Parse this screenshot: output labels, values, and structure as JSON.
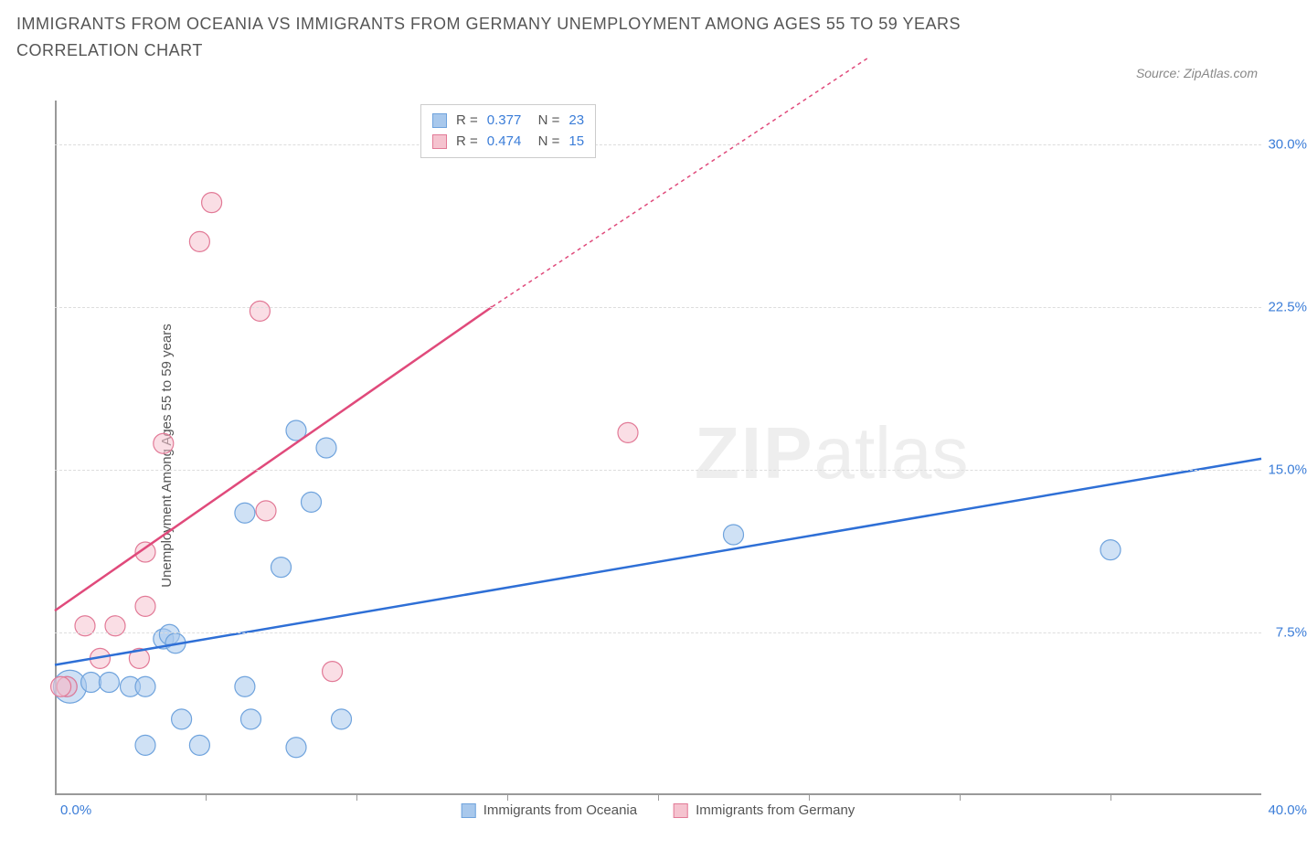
{
  "title": "IMMIGRANTS FROM OCEANIA VS IMMIGRANTS FROM GERMANY UNEMPLOYMENT AMONG AGES 55 TO 59 YEARS CORRELATION CHART",
  "source": "Source: ZipAtlas.com",
  "watermark": {
    "bold": "ZIP",
    "rest": "atlas"
  },
  "chart": {
    "type": "scatter",
    "y_axis_label": "Unemployment Among Ages 55 to 59 years",
    "xlim": [
      0,
      40
    ],
    "ylim": [
      0,
      32
    ],
    "y_ticks": [
      7.5,
      15.0,
      22.5,
      30.0
    ],
    "y_tick_labels": [
      "7.5%",
      "15.0%",
      "22.5%",
      "30.0%"
    ],
    "x_tick_marks": [
      5,
      10,
      15,
      20,
      25,
      30,
      35
    ],
    "x_tick_left": "0.0%",
    "x_tick_right": "40.0%",
    "background_color": "#ffffff",
    "grid_color": "#dddddd",
    "series": [
      {
        "name": "Immigrants from Oceania",
        "fill": "#a8c8ec",
        "stroke": "#6fa3dd",
        "fill_opacity": 0.55,
        "marker_r": 11,
        "line_color": "#2e6fd6",
        "line_width": 2.5,
        "line_dash": "none",
        "R": "0.377",
        "N": "23",
        "trend": {
          "x1": 0,
          "y1": 6.0,
          "x2": 40,
          "y2": 15.5
        },
        "points": [
          {
            "x": 0.5,
            "y": 5.0,
            "r": 18
          },
          {
            "x": 0.4,
            "y": 5.0
          },
          {
            "x": 1.2,
            "y": 5.2
          },
          {
            "x": 1.8,
            "y": 5.2
          },
          {
            "x": 2.5,
            "y": 5.0
          },
          {
            "x": 3.0,
            "y": 5.0
          },
          {
            "x": 3.6,
            "y": 7.2
          },
          {
            "x": 3.8,
            "y": 7.4
          },
          {
            "x": 4.0,
            "y": 7.0
          },
          {
            "x": 3.0,
            "y": 2.3
          },
          {
            "x": 4.8,
            "y": 2.3
          },
          {
            "x": 4.2,
            "y": 3.5
          },
          {
            "x": 6.3,
            "y": 5.0
          },
          {
            "x": 6.5,
            "y": 3.5
          },
          {
            "x": 8.0,
            "y": 2.2
          },
          {
            "x": 9.5,
            "y": 3.5
          },
          {
            "x": 7.5,
            "y": 10.5
          },
          {
            "x": 8.5,
            "y": 13.5
          },
          {
            "x": 6.3,
            "y": 13.0
          },
          {
            "x": 8.0,
            "y": 16.8
          },
          {
            "x": 9.0,
            "y": 16.0
          },
          {
            "x": 22.5,
            "y": 12.0
          },
          {
            "x": 35.0,
            "y": 11.3
          }
        ]
      },
      {
        "name": "Immigrants from Germany",
        "fill": "#f5c3cf",
        "stroke": "#e27a97",
        "fill_opacity": 0.55,
        "marker_r": 11,
        "line_color": "#e04a7b",
        "line_width": 2.5,
        "line_dash": "5,5",
        "R": "0.474",
        "N": "15",
        "trend": {
          "x1": 0,
          "y1": 8.5,
          "x2": 14.5,
          "y2": 22.5
        },
        "trend_dash": {
          "x1": 14.5,
          "y1": 22.5,
          "x2": 27,
          "y2": 34
        },
        "points": [
          {
            "x": 0.4,
            "y": 5.0
          },
          {
            "x": 0.2,
            "y": 5.0
          },
          {
            "x": 1.5,
            "y": 6.3
          },
          {
            "x": 1.0,
            "y": 7.8
          },
          {
            "x": 2.0,
            "y": 7.8
          },
          {
            "x": 2.8,
            "y": 6.3
          },
          {
            "x": 3.0,
            "y": 8.7
          },
          {
            "x": 3.0,
            "y": 11.2
          },
          {
            "x": 3.6,
            "y": 16.2
          },
          {
            "x": 4.8,
            "y": 25.5
          },
          {
            "x": 5.2,
            "y": 27.3
          },
          {
            "x": 6.8,
            "y": 22.3
          },
          {
            "x": 7.0,
            "y": 13.1
          },
          {
            "x": 9.2,
            "y": 5.7
          },
          {
            "x": 19.0,
            "y": 16.7
          }
        ]
      }
    ],
    "legend_bottom": [
      {
        "label": "Immigrants from Oceania",
        "fill": "#a8c8ec",
        "stroke": "#6fa3dd"
      },
      {
        "label": "Immigrants from Germany",
        "fill": "#f5c3cf",
        "stroke": "#e27a97"
      }
    ]
  }
}
